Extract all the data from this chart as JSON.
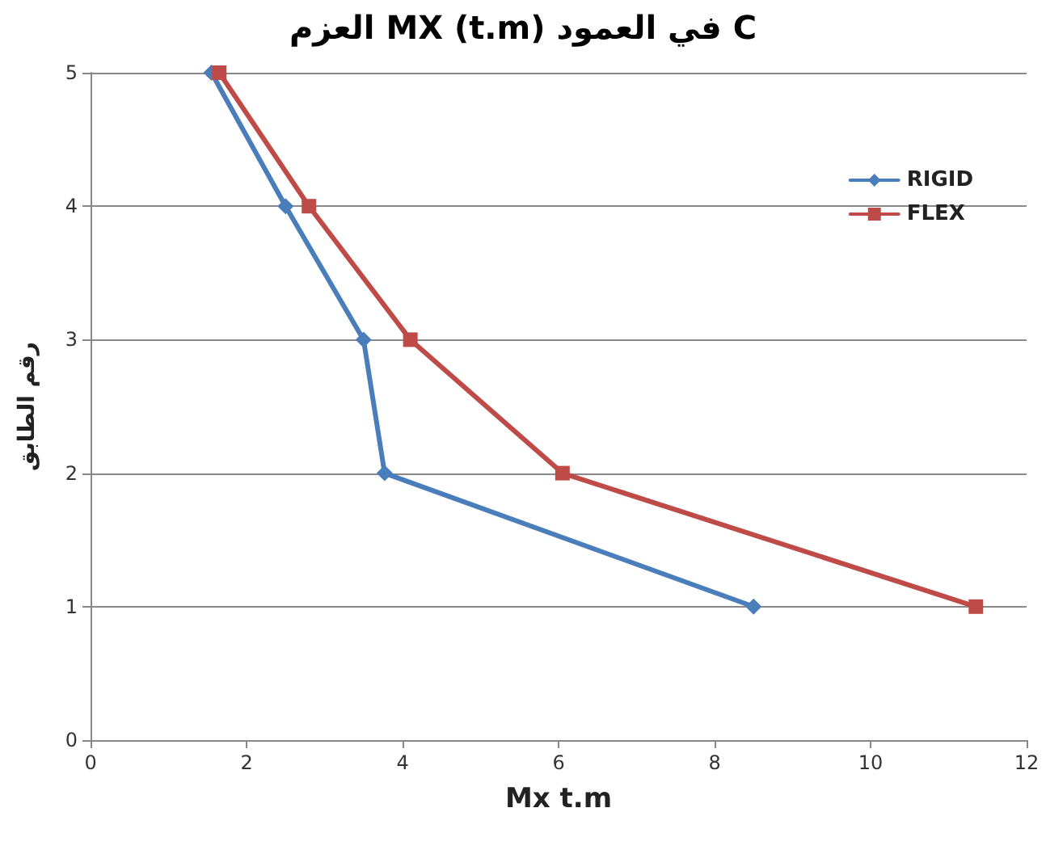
{
  "chart_data": {
    "type": "line",
    "title": "العزم MX (t.m) في العمود C",
    "xlabel": "Mx t.m",
    "ylabel": "رقم الطابق",
    "series": [
      {
        "name": "RIGID",
        "color": "#4a7ebb",
        "marker": "diamond",
        "x": [
          1.55,
          2.5,
          3.5,
          3.77,
          8.5
        ],
        "values": [
          5,
          4,
          3,
          2,
          1
        ]
      },
      {
        "name": "FLEX",
        "color": "#be4b48",
        "marker": "square",
        "x": [
          1.65,
          2.8,
          4.1,
          6.05,
          11.35
        ],
        "values": [
          5,
          4,
          3,
          2,
          1
        ]
      }
    ],
    "xlim": [
      0,
      12
    ],
    "xticks": [
      0,
      2,
      4,
      6,
      8,
      10,
      12
    ],
    "ylim": [
      0,
      5
    ],
    "yticks": [
      0,
      1,
      2,
      3,
      4,
      5
    ],
    "grid": "y",
    "legend": "right",
    "line_style": "solid"
  }
}
